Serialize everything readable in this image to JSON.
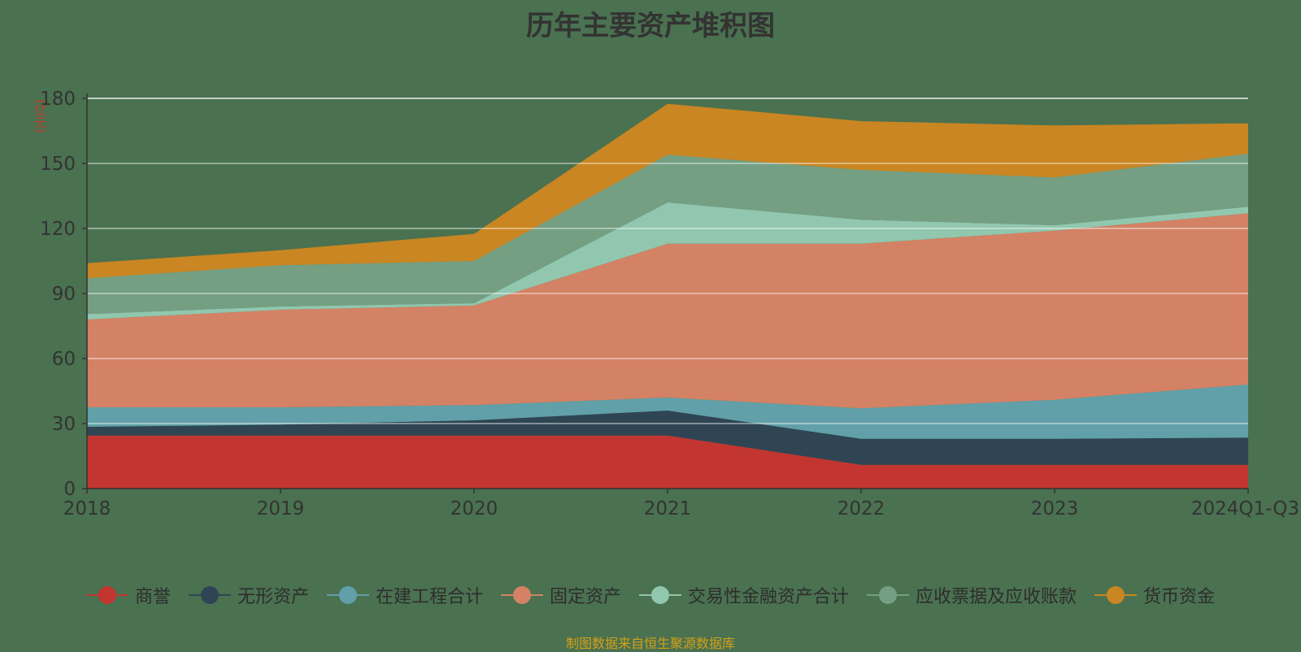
{
  "chart_data": {
    "type": "area",
    "stacked": true,
    "title": "历年主要资产堆积图",
    "unit_label": "(亿元)",
    "source": "制图数据来自恒生聚源数据库",
    "categories": [
      "2018",
      "2019",
      "2020",
      "2021",
      "2022",
      "2023",
      "2024Q1-Q3"
    ],
    "y_ticks": [
      0,
      30,
      60,
      90,
      120,
      150,
      180
    ],
    "ylim": [
      0,
      180
    ],
    "grid": true,
    "legend_position": "bottom",
    "series": [
      {
        "name": "商誉",
        "color": "#c23531",
        "values": [
          24.5,
          24.5,
          24.5,
          24.5,
          11,
          11,
          11
        ]
      },
      {
        "name": "无形资产",
        "color": "#2f4554",
        "values": [
          4,
          5,
          7,
          11.5,
          12,
          12,
          12.5
        ]
      },
      {
        "name": "在建工程合计",
        "color": "#61a0a8",
        "values": [
          9,
          8,
          7,
          6,
          14,
          18,
          24.5
        ]
      },
      {
        "name": "固定资产",
        "color": "#d48265",
        "values": [
          40.5,
          45,
          46,
          71,
          76,
          78,
          79
        ]
      },
      {
        "name": "交易性金融资产合计",
        "color": "#91c7ae",
        "values": [
          2.5,
          1.5,
          1,
          19,
          11,
          2.5,
          3
        ]
      },
      {
        "name": "应收票据及应收账款",
        "color": "#749f83",
        "values": [
          16.5,
          19,
          19.5,
          22,
          23,
          22,
          24.5
        ]
      },
      {
        "name": "货币资金",
        "color": "#ca8622",
        "values": [
          7,
          7,
          12.5,
          23.5,
          22.5,
          24,
          14
        ]
      }
    ]
  }
}
